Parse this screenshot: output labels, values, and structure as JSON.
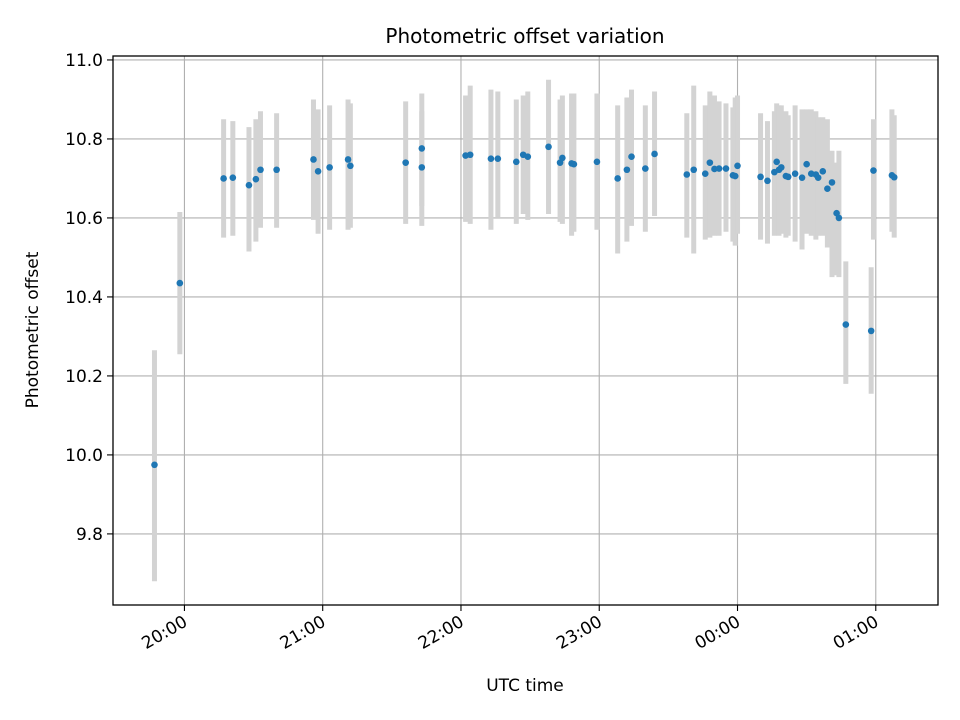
{
  "chart_data": {
    "type": "scatter",
    "title": "Photometric offset variation",
    "xlabel": "UTC time",
    "ylabel": "Photometric offset",
    "x_axis_type": "time",
    "xlim": [
      "19:29",
      "01:27"
    ],
    "ylim": [
      9.62,
      11.01
    ],
    "grid": true,
    "x_ticks": [
      "20:00",
      "21:00",
      "22:00",
      "23:00",
      "00:00",
      "01:00"
    ],
    "y_ticks": [
      "9.8",
      "10.0",
      "10.2",
      "10.4",
      "10.6",
      "10.8",
      "11.0"
    ],
    "colors": {
      "point": "#1f77b4",
      "errorbar": "#d3d3d3",
      "grid": "#b0b0b0",
      "axes": "#000000"
    },
    "series": [
      {
        "x": [
          "19:47",
          "19:58",
          "20:17",
          "20:21",
          "20:28",
          "20:31",
          "20:33",
          "20:40",
          "20:56",
          "20:58",
          "21:03",
          "21:11",
          "21:12",
          "21:36",
          "21:43",
          "21:43",
          "22:02",
          "22:04",
          "22:13",
          "22:16",
          "22:24",
          "22:27",
          "22:29",
          "22:38",
          "22:43",
          "22:44",
          "22:48",
          "22:49",
          "22:59",
          "23:08",
          "23:12",
          "23:14",
          "23:20",
          "23:24",
          "23:38",
          "23:41",
          "23:46",
          "23:48",
          "23:50",
          "23:52",
          "23:55",
          "23:58",
          "23:59",
          "00:00",
          "00:10",
          "00:13",
          "00:16",
          "00:17",
          "00:18",
          "00:19",
          "00:21",
          "00:22",
          "00:25",
          "00:28",
          "00:30",
          "00:32",
          "00:34",
          "00:35",
          "00:37",
          "00:39",
          "00:41",
          "00:43",
          "00:44",
          "00:47",
          "00:58",
          "00:59",
          "01:07",
          "01:08"
        ],
        "y": [
          9.975,
          10.435,
          10.7,
          10.702,
          10.683,
          10.698,
          10.722,
          10.722,
          10.748,
          10.718,
          10.728,
          10.748,
          10.732,
          10.74,
          10.776,
          10.728,
          10.758,
          10.76,
          10.75,
          10.75,
          10.742,
          10.76,
          10.755,
          10.78,
          10.74,
          10.752,
          10.738,
          10.736,
          10.742,
          10.7,
          10.722,
          10.755,
          10.725,
          10.762,
          10.71,
          10.722,
          10.712,
          10.74,
          10.724,
          10.725,
          10.725,
          10.708,
          10.706,
          10.732,
          10.704,
          10.694,
          10.716,
          10.742,
          10.722,
          10.728,
          10.706,
          10.704,
          10.712,
          10.702,
          10.736,
          10.712,
          10.71,
          10.702,
          10.718,
          10.674,
          10.69,
          10.612,
          10.6,
          10.33,
          10.314,
          10.72,
          10.708,
          10.703
        ],
        "err_low": [
          9.68,
          10.255,
          10.55,
          10.555,
          10.515,
          10.54,
          10.575,
          10.575,
          10.595,
          10.56,
          10.57,
          10.57,
          10.575,
          10.585,
          10.63,
          10.58,
          10.59,
          10.585,
          10.57,
          10.6,
          10.585,
          10.61,
          10.595,
          10.61,
          10.59,
          10.585,
          10.555,
          10.565,
          10.57,
          10.51,
          10.54,
          10.58,
          10.565,
          10.605,
          10.55,
          10.51,
          10.545,
          10.55,
          10.555,
          10.555,
          10.565,
          10.54,
          10.53,
          10.56,
          10.545,
          10.535,
          10.555,
          10.585,
          10.555,
          10.56,
          10.55,
          10.555,
          10.54,
          10.52,
          10.56,
          10.555,
          10.545,
          10.555,
          10.555,
          10.525,
          10.45,
          10.455,
          10.45,
          10.18,
          10.155,
          10.545,
          10.565,
          10.55
        ],
        "err_high": [
          10.265,
          10.615,
          10.85,
          10.845,
          10.83,
          10.85,
          10.87,
          10.865,
          10.9,
          10.875,
          10.885,
          10.9,
          10.89,
          10.895,
          10.915,
          10.87,
          10.91,
          10.935,
          10.925,
          10.92,
          10.9,
          10.91,
          10.92,
          10.95,
          10.9,
          10.91,
          10.915,
          10.915,
          10.915,
          10.885,
          10.905,
          10.925,
          10.885,
          10.92,
          10.865,
          10.935,
          10.885,
          10.92,
          10.91,
          10.895,
          10.89,
          10.88,
          10.905,
          10.91,
          10.865,
          10.845,
          10.87,
          10.89,
          10.885,
          10.885,
          10.87,
          10.86,
          10.885,
          10.875,
          10.875,
          10.875,
          10.87,
          10.855,
          10.855,
          10.85,
          10.77,
          10.74,
          10.77,
          10.49,
          10.475,
          10.85,
          10.875,
          10.86
        ]
      }
    ]
  }
}
